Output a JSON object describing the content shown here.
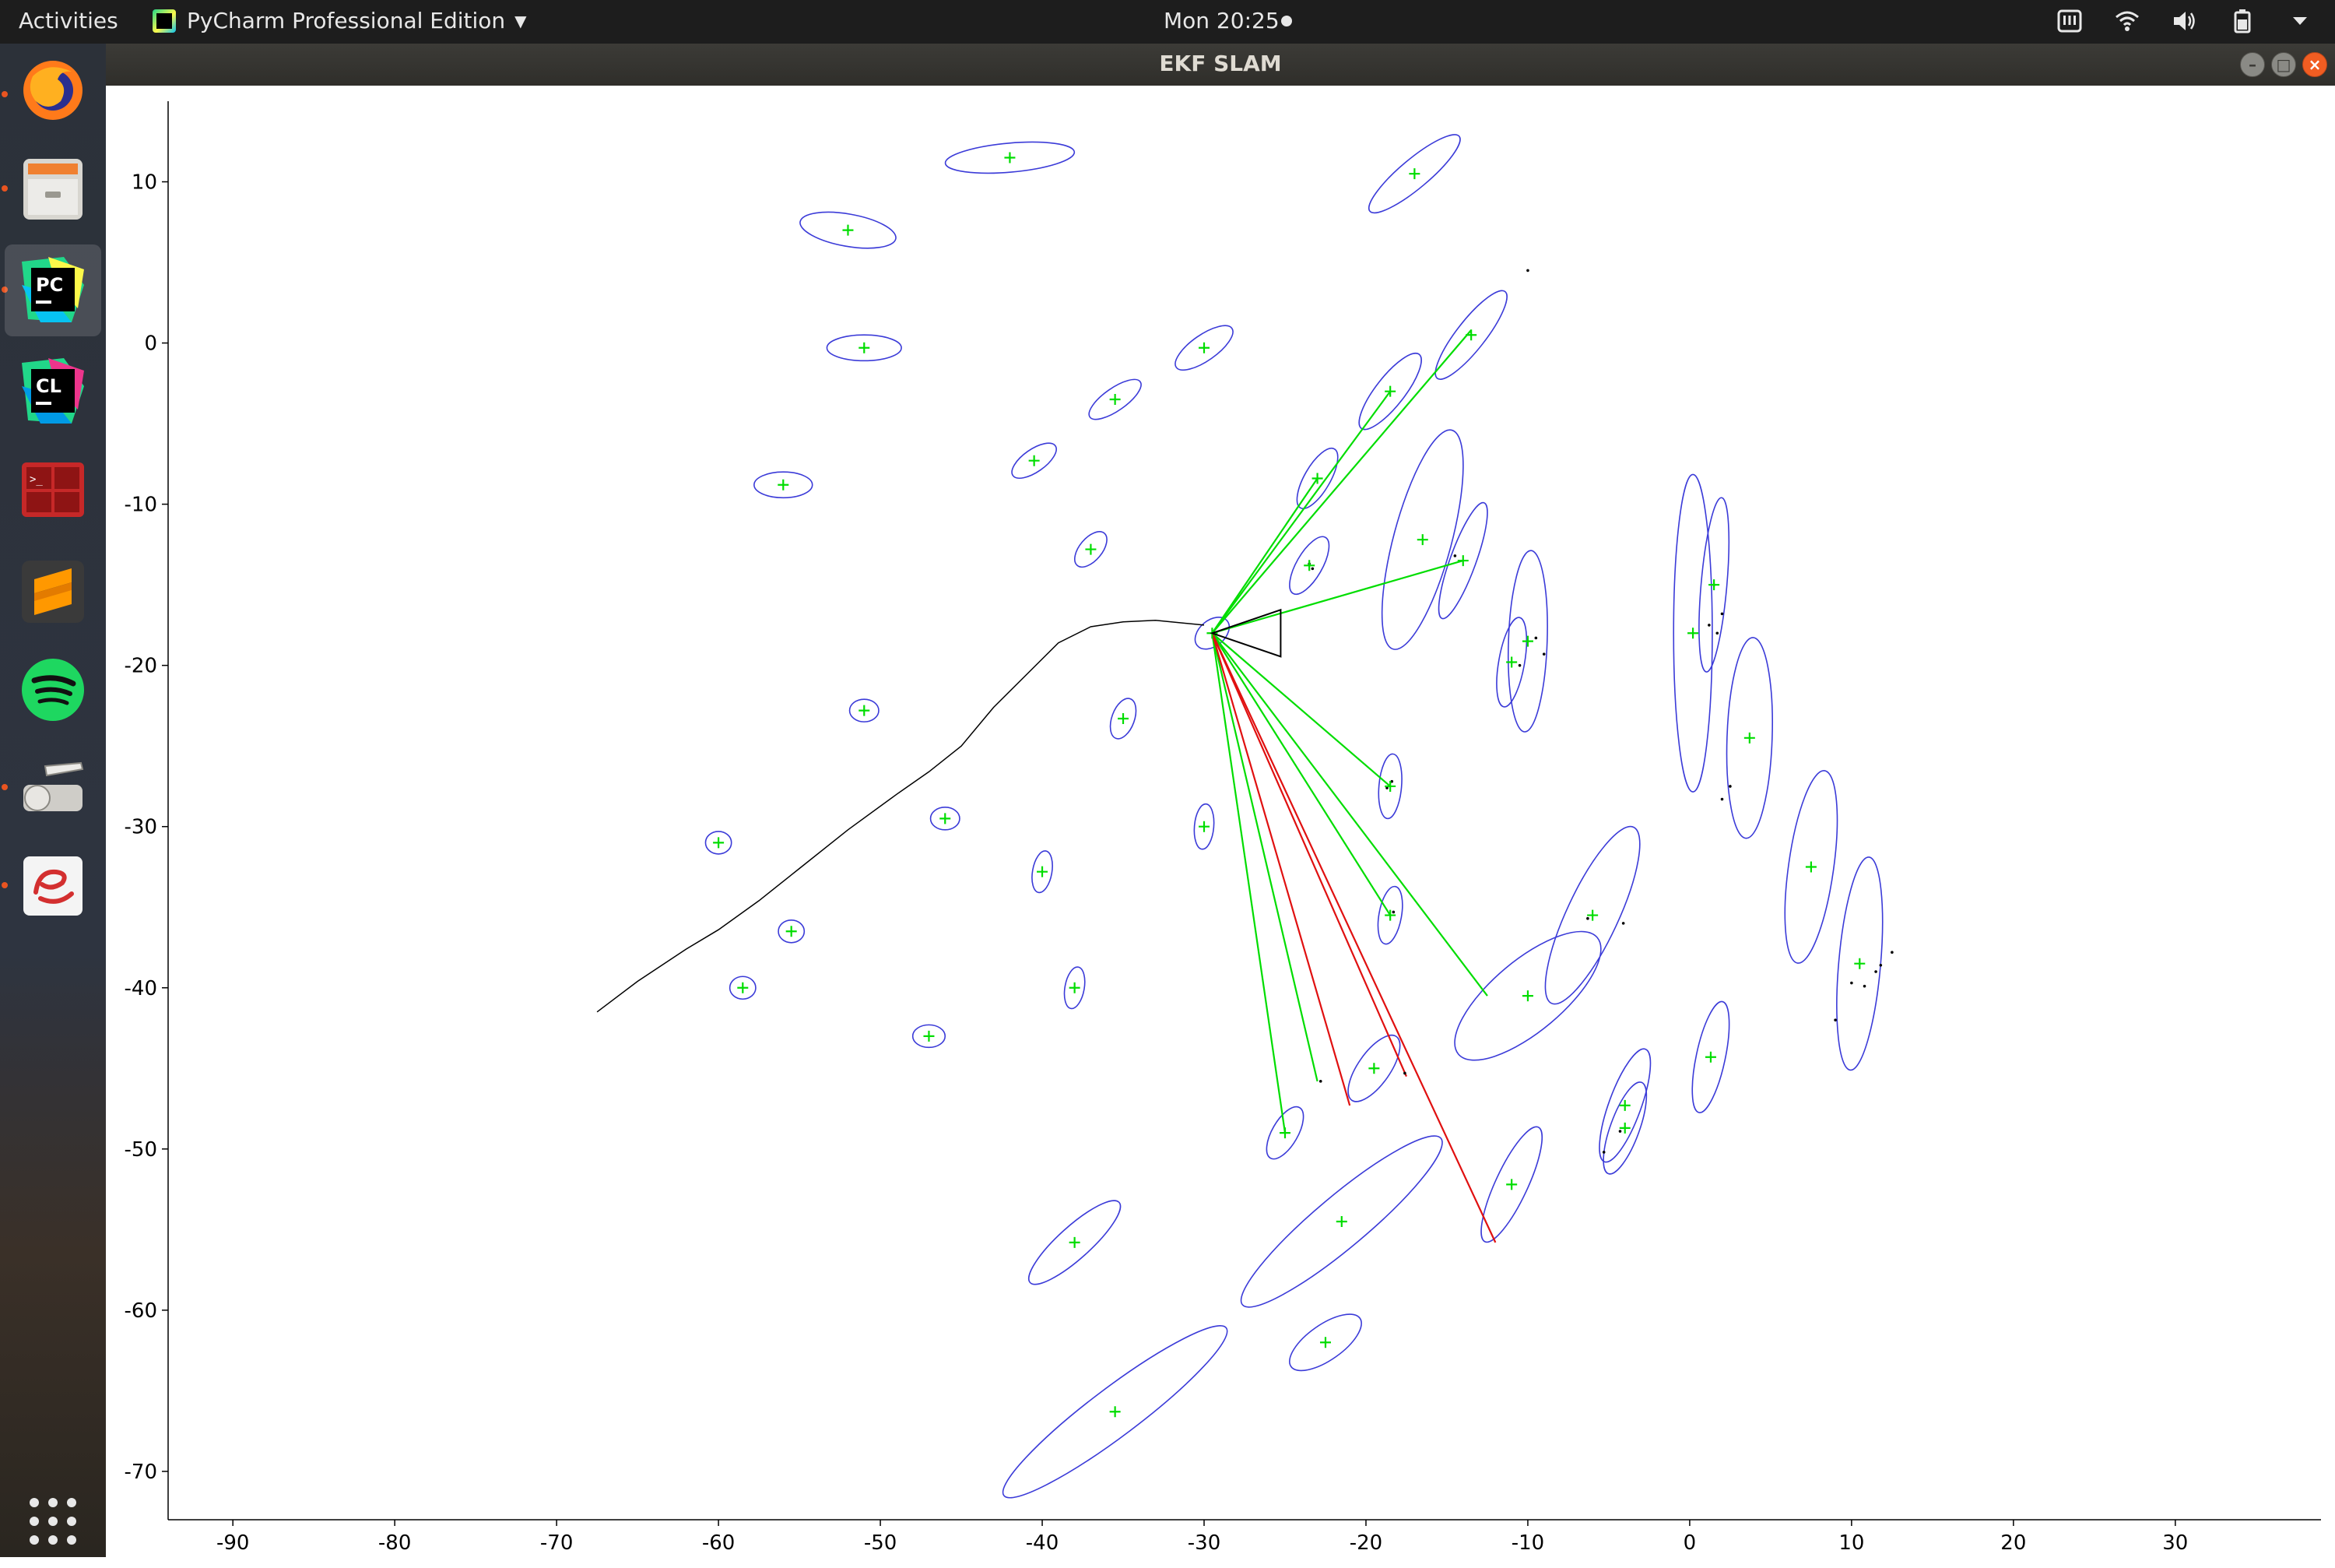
{
  "topbar": {
    "activities": "Activities",
    "app_menu": "PyCharm Professional Edition",
    "clock": "Mon 20:25"
  },
  "window": {
    "title": "EKF SLAM"
  },
  "dock": {
    "items": [
      {
        "name": "firefox",
        "running": true
      },
      {
        "name": "files",
        "running": true
      },
      {
        "name": "pycharm",
        "running": true,
        "active": true
      },
      {
        "name": "clion",
        "running": false
      },
      {
        "name": "terminal",
        "running": false
      },
      {
        "name": "sublime-text",
        "running": false
      },
      {
        "name": "spotify",
        "running": false
      },
      {
        "name": "scanner",
        "running": true
      },
      {
        "name": "pdf-reader",
        "running": true
      },
      {
        "name": "show-applications",
        "running": false
      }
    ]
  },
  "chart_data": {
    "type": "scatter",
    "title": "",
    "xlabel": "",
    "ylabel": "",
    "xlim": [
      -94,
      39
    ],
    "ylim": [
      -73,
      15
    ],
    "xticks": [
      -90,
      -80,
      -70,
      -60,
      -50,
      -40,
      -30,
      -20,
      -10,
      0,
      10,
      20,
      30
    ],
    "yticks": [
      10,
      0,
      -10,
      -20,
      -30,
      -40,
      -50,
      -60,
      -70
    ],
    "grid": false,
    "colors": {
      "landmark_estimate": "#00dd00",
      "covariance_ellipse": "#3b3bd8",
      "observation_match": "#00dd00",
      "observation_new": "#e01010",
      "trajectory": "#000000",
      "robot": "#000000"
    },
    "robot": {
      "x": -29.5,
      "y": -18.0,
      "heading_deg": 180
    },
    "trajectory": [
      [
        -67.5,
        -41.5
      ],
      [
        -65,
        -39.6
      ],
      [
        -62,
        -37.6
      ],
      [
        -60,
        -36.4
      ],
      [
        -57.5,
        -34.6
      ],
      [
        -55,
        -32.6
      ],
      [
        -52,
        -30.2
      ],
      [
        -49,
        -28.0
      ],
      [
        -47,
        -26.6
      ],
      [
        -45,
        -25.0
      ],
      [
        -43,
        -22.6
      ],
      [
        -41,
        -20.6
      ],
      [
        -39,
        -18.6
      ],
      [
        -37,
        -17.6
      ],
      [
        -35,
        -17.3
      ],
      [
        -33,
        -17.2
      ],
      [
        -30,
        -17.5
      ]
    ],
    "landmarks": [
      {
        "x": -42,
        "y": 11.5,
        "a": 4.0,
        "b": 0.9,
        "angle": -5
      },
      {
        "x": -17,
        "y": 10.5,
        "a": 3.6,
        "b": 0.9,
        "angle": -40
      },
      {
        "x": -52,
        "y": 7.0,
        "a": 3.0,
        "b": 1.0,
        "angle": 10
      },
      {
        "x": -51,
        "y": -0.3,
        "a": 2.3,
        "b": 0.8,
        "angle": 0
      },
      {
        "x": -30,
        "y": -0.3,
        "a": 2.1,
        "b": 0.8,
        "angle": -35
      },
      {
        "x": -13.5,
        "y": 0.5,
        "a": 3.4,
        "b": 0.9,
        "angle": -52
      },
      {
        "x": -35.5,
        "y": -3.5,
        "a": 1.9,
        "b": 0.7,
        "angle": -35
      },
      {
        "x": -18.5,
        "y": -3.0,
        "a": 2.9,
        "b": 0.9,
        "angle": -52
      },
      {
        "x": -56,
        "y": -8.8,
        "a": 1.8,
        "b": 0.8,
        "angle": 0
      },
      {
        "x": -40.5,
        "y": -7.3,
        "a": 1.6,
        "b": 0.7,
        "angle": -35
      },
      {
        "x": -23,
        "y": -8.4,
        "a": 2.1,
        "b": 0.8,
        "angle": -60
      },
      {
        "x": -37,
        "y": -12.8,
        "a": 1.3,
        "b": 0.7,
        "angle": -50
      },
      {
        "x": -23.5,
        "y": -13.8,
        "a": 2.0,
        "b": 0.8,
        "angle": -60
      },
      {
        "x": -16.5,
        "y": -12.2,
        "a": 7.0,
        "b": 1.8,
        "angle": -75
      },
      {
        "x": -14,
        "y": -13.5,
        "a": 3.8,
        "b": 0.8,
        "angle": -70
      },
      {
        "x": -10,
        "y": -18.5,
        "a": 5.6,
        "b": 1.2,
        "angle": -88
      },
      {
        "x": -11,
        "y": -19.8,
        "a": 2.8,
        "b": 0.8,
        "angle": -80
      },
      {
        "x": 0.2,
        "y": -18.0,
        "a": 9.8,
        "b": 1.2,
        "angle": -90
      },
      {
        "x": 1.5,
        "y": -15.0,
        "a": 5.4,
        "b": 0.8,
        "angle": -85
      },
      {
        "x": 3.7,
        "y": -24.5,
        "a": 6.2,
        "b": 1.4,
        "angle": -88
      },
      {
        "x": -29.5,
        "y": -18.0,
        "a": 1.2,
        "b": 0.8,
        "angle": -40
      },
      {
        "x": -51,
        "y": -22.8,
        "a": 0.9,
        "b": 0.7,
        "angle": 0
      },
      {
        "x": -35,
        "y": -23.3,
        "a": 1.3,
        "b": 0.7,
        "angle": -70
      },
      {
        "x": -18.5,
        "y": -27.5,
        "a": 2.0,
        "b": 0.7,
        "angle": -85
      },
      {
        "x": -60,
        "y": -31.0,
        "a": 0.8,
        "b": 0.7,
        "angle": 0
      },
      {
        "x": -46,
        "y": -29.5,
        "a": 0.9,
        "b": 0.7,
        "angle": 0
      },
      {
        "x": -30,
        "y": -30.0,
        "a": 1.4,
        "b": 0.6,
        "angle": -85
      },
      {
        "x": -40,
        "y": -32.8,
        "a": 1.3,
        "b": 0.6,
        "angle": -80
      },
      {
        "x": -55.5,
        "y": -36.5,
        "a": 0.8,
        "b": 0.7,
        "angle": 0
      },
      {
        "x": -18.5,
        "y": -35.5,
        "a": 1.8,
        "b": 0.7,
        "angle": -80
      },
      {
        "x": -6,
        "y": -35.5,
        "a": 6.0,
        "b": 1.6,
        "angle": -65
      },
      {
        "x": 7.5,
        "y": -32.5,
        "a": 6.0,
        "b": 1.4,
        "angle": -82
      },
      {
        "x": -58.5,
        "y": -40.0,
        "a": 0.8,
        "b": 0.7,
        "angle": 0
      },
      {
        "x": -38,
        "y": -40.0,
        "a": 1.3,
        "b": 0.6,
        "angle": -80
      },
      {
        "x": -10,
        "y": -40.5,
        "a": 5.6,
        "b": 2.2,
        "angle": -40
      },
      {
        "x": 10.5,
        "y": -38.5,
        "a": 6.6,
        "b": 1.3,
        "angle": -85
      },
      {
        "x": -47,
        "y": -43.0,
        "a": 1.0,
        "b": 0.7,
        "angle": 0
      },
      {
        "x": -19.5,
        "y": -45.0,
        "a": 2.4,
        "b": 1.0,
        "angle": -55
      },
      {
        "x": 1.3,
        "y": -44.3,
        "a": 3.5,
        "b": 0.9,
        "angle": -78
      },
      {
        "x": -4,
        "y": -47.3,
        "a": 3.7,
        "b": 1.0,
        "angle": -70
      },
      {
        "x": -4,
        "y": -48.7,
        "a": 3.0,
        "b": 0.9,
        "angle": -70
      },
      {
        "x": -25,
        "y": -49.0,
        "a": 1.8,
        "b": 0.8,
        "angle": -60
      },
      {
        "x": -11,
        "y": -52.2,
        "a": 3.9,
        "b": 1.0,
        "angle": -65
      },
      {
        "x": -38,
        "y": -55.8,
        "a": 3.7,
        "b": 1.0,
        "angle": -42
      },
      {
        "x": -21.5,
        "y": -54.5,
        "a": 8.0,
        "b": 1.6,
        "angle": -40
      },
      {
        "x": -22.5,
        "y": -62.0,
        "a": 2.6,
        "b": 1.1,
        "angle": -35
      },
      {
        "x": -35.5,
        "y": -66.3,
        "a": 8.6,
        "b": 1.5,
        "angle": -37
      }
    ],
    "observations_matched": [
      [
        -13.5,
        0.8
      ],
      [
        -18.5,
        -3.0
      ],
      [
        -23,
        -8.4
      ],
      [
        -14,
        -13.5
      ],
      [
        -18.5,
        -27.5
      ],
      [
        -18.5,
        -35.5
      ],
      [
        -12.5,
        -40.5
      ],
      [
        -23,
        -45.8
      ],
      [
        -25,
        -49.0
      ]
    ],
    "observations_new": [
      [
        -21,
        -47.3
      ],
      [
        -17.5,
        -45.5
      ],
      [
        -12,
        -55.8
      ]
    ],
    "raw_points": [
      [
        -10,
        4.5
      ],
      [
        -23.5,
        -13.7
      ],
      [
        -23.3,
        -14.0
      ],
      [
        -14.5,
        -13.2
      ],
      [
        -9.5,
        -18.3
      ],
      [
        -9.0,
        -19.3
      ],
      [
        -10.5,
        -20.0
      ],
      [
        1.5,
        -15.0
      ],
      [
        2.0,
        -16.8
      ],
      [
        1.2,
        -17.5
      ],
      [
        1.7,
        -18.0
      ],
      [
        2.5,
        -27.5
      ],
      [
        2.0,
        -28.3
      ],
      [
        -18.4,
        -27.2
      ],
      [
        -18.7,
        -27.6
      ],
      [
        -18.3,
        -35.3
      ],
      [
        -6.3,
        -35.7
      ],
      [
        -4.1,
        -36.0
      ],
      [
        11.5,
        -39.0
      ],
      [
        12.5,
        -37.8
      ],
      [
        10,
        -39.7
      ],
      [
        10.8,
        -39.9
      ],
      [
        11.8,
        -38.6
      ],
      [
        9.0,
        -42.0
      ],
      [
        -5.3,
        -50.2
      ],
      [
        -4.3,
        -48.9
      ],
      [
        -22.8,
        -45.8
      ],
      [
        -17.6,
        -45.3
      ]
    ]
  }
}
